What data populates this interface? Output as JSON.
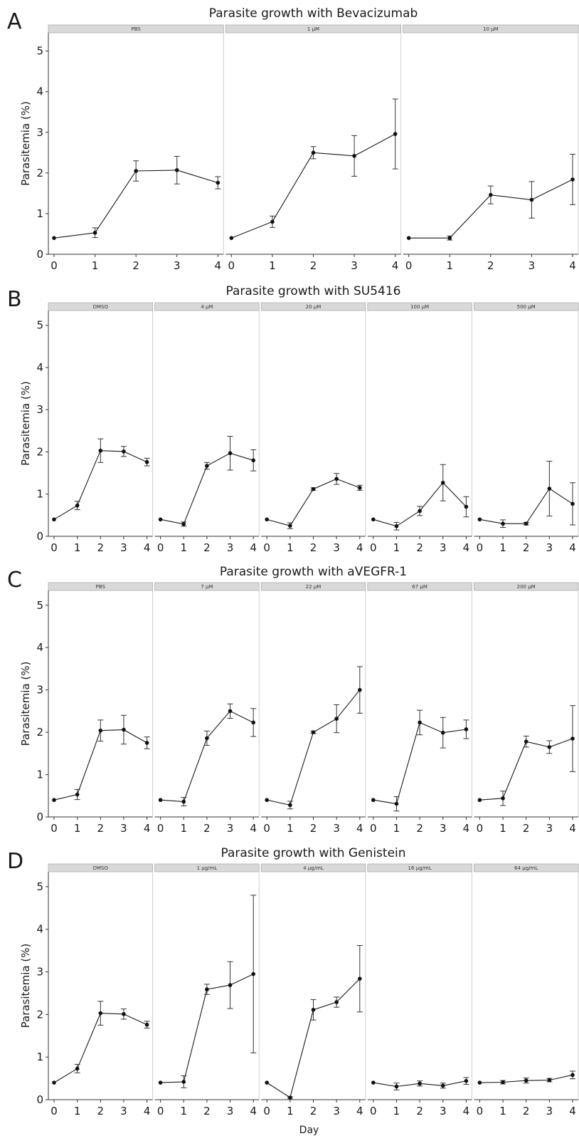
{
  "chart_data": [
    {
      "type": "line",
      "panel_letter": "A",
      "title": "Parasite growth with Bevacizumab",
      "ylabel": "Parasitemia (%)",
      "xlabel": "",
      "x": [
        0,
        1,
        2,
        3,
        4
      ],
      "xlim": [
        0,
        4
      ],
      "ylim": [
        0,
        5
      ],
      "yticks": [
        0,
        1,
        2,
        3,
        4,
        5
      ],
      "grid": false,
      "facets": [
        {
          "label": "PBS",
          "values": [
            0.4,
            0.53,
            2.05,
            2.07,
            1.76
          ],
          "errors": [
            0,
            0.12,
            0.25,
            0.34,
            0.15
          ]
        },
        {
          "label": "1 μM",
          "values": [
            0.4,
            0.8,
            2.5,
            2.42,
            2.96
          ],
          "errors": [
            0,
            0.14,
            0.15,
            0.5,
            0.86
          ]
        },
        {
          "label": "10 μM",
          "values": [
            0.4,
            0.4,
            1.46,
            1.34,
            1.84
          ],
          "errors": [
            0,
            0.05,
            0.22,
            0.45,
            0.62
          ]
        }
      ]
    },
    {
      "type": "line",
      "panel_letter": "B",
      "title": "Parasite growth with SU5416",
      "ylabel": "Parasitemia (%)",
      "xlabel": "",
      "x": [
        0,
        1,
        2,
        3,
        4
      ],
      "xlim": [
        0,
        4
      ],
      "ylim": [
        0,
        5
      ],
      "yticks": [
        0,
        1,
        2,
        3,
        4,
        5
      ],
      "grid": false,
      "facets": [
        {
          "label": "DMSO",
          "values": [
            0.4,
            0.73,
            2.03,
            2.01,
            1.76
          ],
          "errors": [
            0,
            0.1,
            0.28,
            0.12,
            0.09
          ]
        },
        {
          "label": "4 μM",
          "values": [
            0.4,
            0.29,
            1.67,
            1.97,
            1.8
          ],
          "errors": [
            0,
            0.05,
            0.08,
            0.4,
            0.25
          ]
        },
        {
          "label": "20 μM",
          "values": [
            0.4,
            0.25,
            1.12,
            1.36,
            1.15
          ],
          "errors": [
            0,
            0.07,
            0.03,
            0.13,
            0.06
          ]
        },
        {
          "label": "100 μM",
          "values": [
            0.4,
            0.24,
            0.6,
            1.27,
            0.7
          ],
          "errors": [
            0,
            0.09,
            0.11,
            0.43,
            0.24
          ]
        },
        {
          "label": "500 μM",
          "values": [
            0.4,
            0.3,
            0.3,
            1.13,
            0.77
          ],
          "errors": [
            0,
            0.09,
            0.03,
            0.65,
            0.5
          ]
        }
      ]
    },
    {
      "type": "line",
      "panel_letter": "C",
      "title": "Parasite growth with aVEGFR-1",
      "ylabel": "Parasitemia (%)",
      "xlabel": "",
      "x": [
        0,
        1,
        2,
        3,
        4
      ],
      "xlim": [
        0,
        4
      ],
      "ylim": [
        0,
        5
      ],
      "yticks": [
        0,
        1,
        2,
        3,
        4,
        5
      ],
      "grid": false,
      "facets": [
        {
          "label": "PBS",
          "values": [
            0.4,
            0.53,
            2.04,
            2.06,
            1.75
          ],
          "errors": [
            0,
            0.12,
            0.25,
            0.34,
            0.14
          ]
        },
        {
          "label": "7 μM",
          "values": [
            0.4,
            0.36,
            1.86,
            2.5,
            2.23
          ],
          "errors": [
            0,
            0.1,
            0.17,
            0.17,
            0.33
          ]
        },
        {
          "label": "22 μM",
          "values": [
            0.4,
            0.28,
            2.0,
            2.32,
            3.0
          ],
          "errors": [
            0,
            0.09,
            0.03,
            0.33,
            0.55
          ]
        },
        {
          "label": "67 μM",
          "values": [
            0.4,
            0.31,
            2.23,
            1.99,
            2.07
          ],
          "errors": [
            0,
            0.17,
            0.29,
            0.36,
            0.22
          ]
        },
        {
          "label": "200 μM",
          "values": [
            0.4,
            0.44,
            1.78,
            1.65,
            1.85
          ],
          "errors": [
            0,
            0.17,
            0.13,
            0.15,
            0.78
          ]
        }
      ]
    },
    {
      "type": "line",
      "panel_letter": "D",
      "title": "Parasite growth with Genistein",
      "ylabel": "Parasitemia (%)",
      "xlabel": "Day",
      "x": [
        0,
        1,
        2,
        3,
        4
      ],
      "xlim": [
        0,
        4
      ],
      "ylim": [
        0,
        5
      ],
      "yticks": [
        0,
        1,
        2,
        3,
        4,
        5
      ],
      "grid": false,
      "facets": [
        {
          "label": "DMSO",
          "values": [
            0.4,
            0.73,
            2.03,
            2.01,
            1.76
          ],
          "errors": [
            0,
            0.1,
            0.28,
            0.12,
            0.08
          ]
        },
        {
          "label": "1 μg/mL",
          "values": [
            0.4,
            0.42,
            2.59,
            2.69,
            2.95
          ],
          "errors": [
            0,
            0.14,
            0.12,
            0.55,
            1.85
          ]
        },
        {
          "label": "4 μg/mL",
          "values": [
            0.4,
            0.05,
            2.11,
            2.29,
            2.84
          ],
          "errors": [
            0,
            0.02,
            0.24,
            0.12,
            0.78
          ]
        },
        {
          "label": "16 μg/mL",
          "values": [
            0.4,
            0.31,
            0.38,
            0.33,
            0.44
          ],
          "errors": [
            0,
            0.08,
            0.06,
            0.06,
            0.08
          ]
        },
        {
          "label": "64 μg/mL",
          "values": [
            0.4,
            0.41,
            0.45,
            0.46,
            0.58
          ],
          "errors": [
            0,
            0.04,
            0.06,
            0.04,
            0.09
          ]
        }
      ]
    }
  ]
}
